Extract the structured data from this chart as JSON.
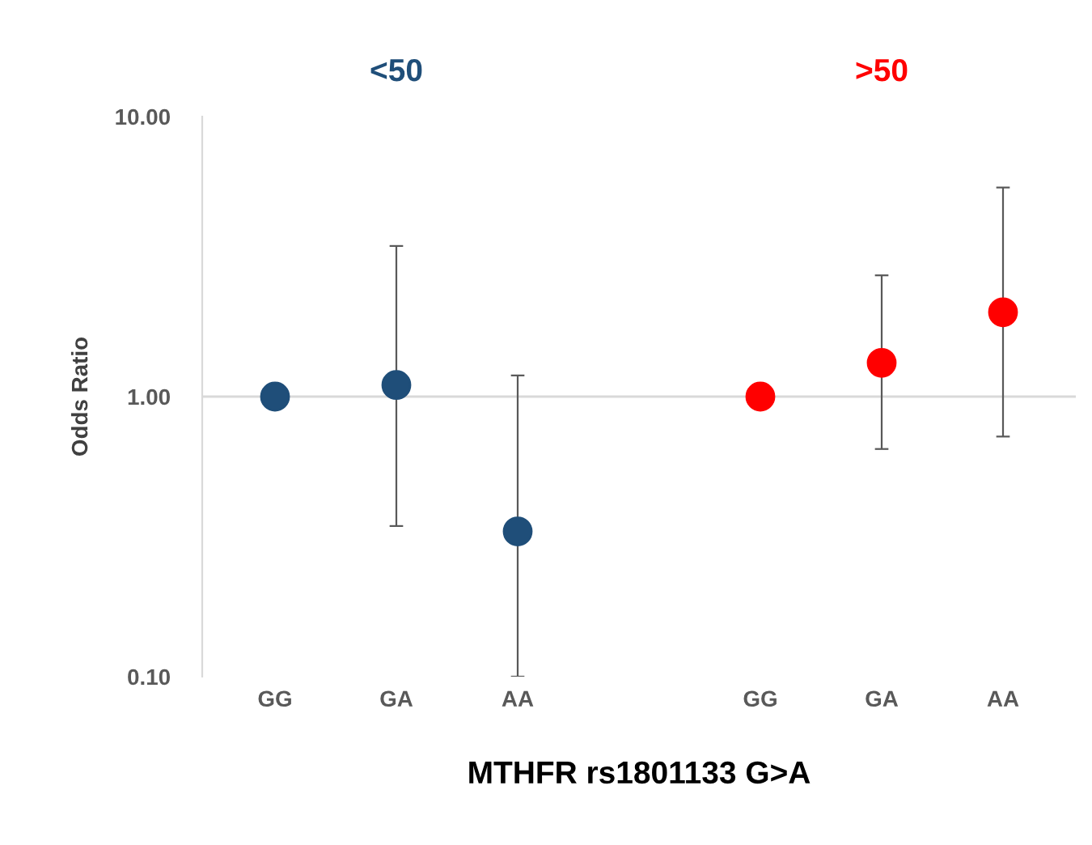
{
  "chart_data": {
    "type": "scatter",
    "xlabel": "MTHFR rs1801133 G>A",
    "ylabel": "Odds Ratio",
    "categories": [
      "GG",
      "GA",
      "AA",
      null,
      "GG",
      "GA",
      "AA"
    ],
    "series": [
      {
        "color": "#1f4e79",
        "values": [
          1.0,
          1.1,
          0.33,
          null,
          null,
          null,
          null
        ],
        "errors": [
          null,
          [
            0.345,
            3.45
          ],
          [
            0.1,
            1.19
          ],
          null,
          null,
          null,
          null
        ]
      },
      {
        "color": "#ff0000",
        "values": [
          null,
          null,
          null,
          null,
          1.0,
          1.32,
          2.0
        ],
        "errors": [
          null,
          null,
          null,
          null,
          null,
          [
            0.65,
            2.71
          ],
          [
            0.72,
            5.58
          ]
        ]
      }
    ],
    "annotations": [
      "<50",
      ">50"
    ],
    "log": "y",
    "ylim": [
      0.1,
      10
    ],
    "yticks": [
      {
        "value": 0.1,
        "label": "0.10"
      },
      {
        "value": 1,
        "label": "1.00"
      },
      {
        "value": 10,
        "label": "10.00"
      }
    ],
    "ref_lines": [
      {
        "axis": "y",
        "value": 1,
        "color": "#d9d9d9"
      }
    ],
    "marker": "circle",
    "grid": false,
    "legend": false
  }
}
